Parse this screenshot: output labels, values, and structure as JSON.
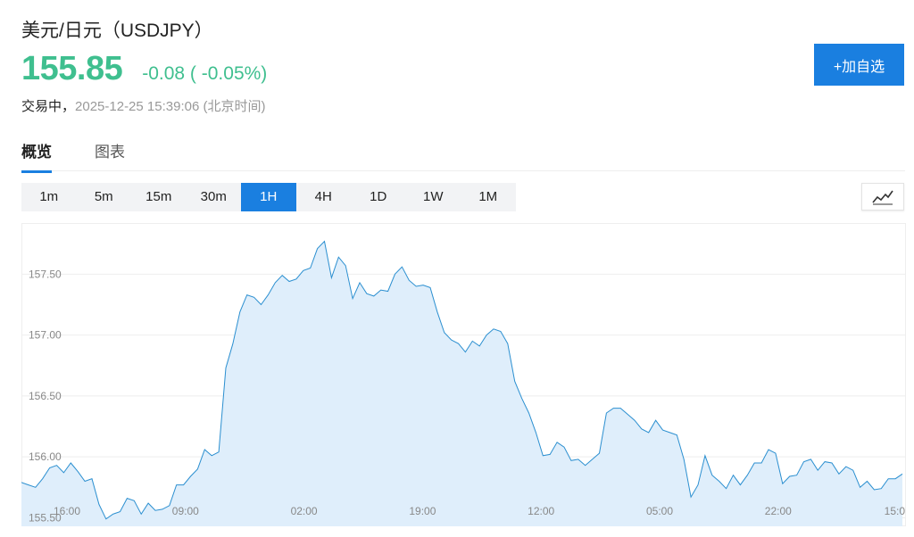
{
  "header": {
    "title": "美元/日元（USDJPY）",
    "price": "155.85",
    "change": "-0.08 ( -0.05%)",
    "state": "交易中，",
    "timestamp": "2025-12-25 15:39:06 (北京时间)",
    "add_button_label": "+加自选"
  },
  "tabs": [
    {
      "label": "概览",
      "active": true
    },
    {
      "label": "图表",
      "active": false
    }
  ],
  "intervals": [
    {
      "label": "1m"
    },
    {
      "label": "5m"
    },
    {
      "label": "15m"
    },
    {
      "label": "30m"
    },
    {
      "label": "1H",
      "active": true
    },
    {
      "label": "4H"
    },
    {
      "label": "1D"
    },
    {
      "label": "1W"
    },
    {
      "label": "1M"
    }
  ],
  "chart_type_icon": "line-chart-icon",
  "colors": {
    "up": "#3fbf8f",
    "accent": "#1a7fe0",
    "line": "#2b8fd0",
    "fill": "#dfeefb"
  },
  "chart_data": {
    "type": "area",
    "x_tick_labels": [
      "16:00",
      "09:00",
      "02:00",
      "19:00",
      "12:00",
      "05:00",
      "22:00",
      "15:0"
    ],
    "y_tick_labels": [
      "157.50",
      "157.00",
      "156.50",
      "156.00",
      "155.50"
    ],
    "y_ticks": [
      157.5,
      157.0,
      156.5,
      156.0,
      155.5
    ],
    "ylim": [
      155.43,
      157.92
    ],
    "grid": true,
    "values": [
      155.79,
      155.77,
      155.75,
      155.82,
      155.91,
      155.93,
      155.87,
      155.95,
      155.88,
      155.8,
      155.82,
      155.61,
      155.49,
      155.53,
      155.55,
      155.66,
      155.64,
      155.53,
      155.62,
      155.56,
      155.57,
      155.6,
      155.77,
      155.77,
      155.84,
      155.9,
      156.06,
      156.01,
      156.04,
      156.73,
      156.93,
      157.19,
      157.33,
      157.31,
      157.25,
      157.33,
      157.43,
      157.49,
      157.44,
      157.46,
      157.53,
      157.55,
      157.71,
      157.77,
      157.47,
      157.64,
      157.57,
      157.3,
      157.43,
      157.34,
      157.32,
      157.37,
      157.36,
      157.5,
      157.56,
      157.45,
      157.4,
      157.41,
      157.39,
      157.19,
      157.02,
      156.96,
      156.93,
      156.86,
      156.95,
      156.91,
      157.0,
      157.05,
      157.03,
      156.93,
      156.62,
      156.48,
      156.36,
      156.2,
      156.01,
      156.02,
      156.12,
      156.08,
      155.97,
      155.98,
      155.93,
      155.98,
      156.03,
      156.36,
      156.4,
      156.4,
      156.35,
      156.3,
      156.23,
      156.2,
      156.3,
      156.22,
      156.2,
      156.18,
      155.98,
      155.67,
      155.77,
      156.01,
      155.85,
      155.8,
      155.74,
      155.85,
      155.77,
      155.85,
      155.95,
      155.95,
      156.06,
      156.03,
      155.78,
      155.84,
      155.85,
      155.96,
      155.98,
      155.89,
      155.96,
      155.95,
      155.86,
      155.92,
      155.89,
      155.75,
      155.8,
      155.73,
      155.74,
      155.82,
      155.82,
      155.86
    ]
  }
}
